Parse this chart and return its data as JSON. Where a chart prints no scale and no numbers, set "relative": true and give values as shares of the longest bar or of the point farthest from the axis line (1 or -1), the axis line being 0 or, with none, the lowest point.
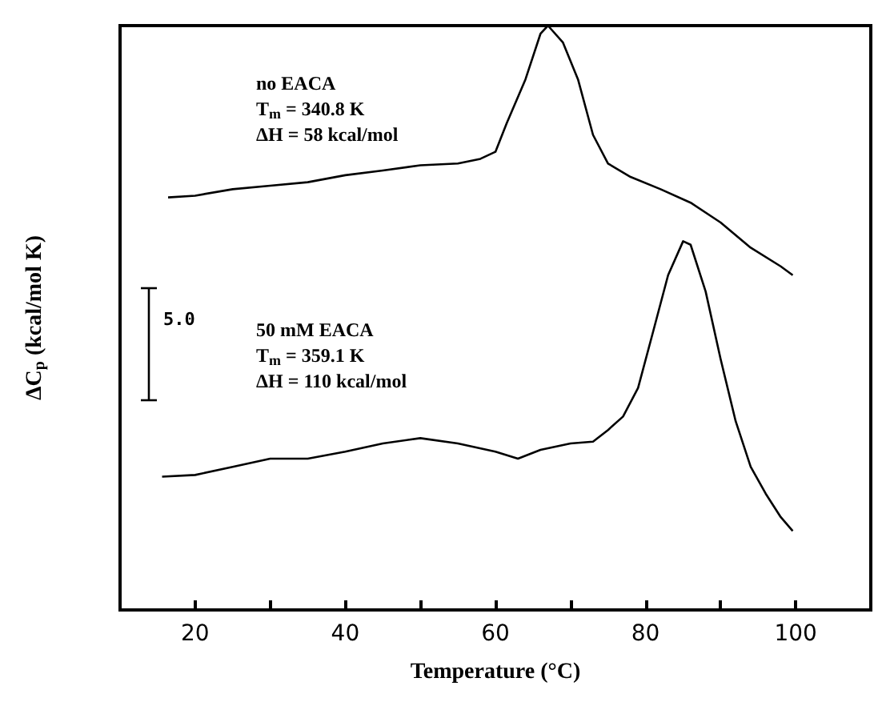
{
  "chart_data": {
    "type": "line",
    "relative": true,
    "xlabel": "Temperature (°C)",
    "ylabel": "ΔC$_{p}$ (kcal/mol K)",
    "xlim": [
      10,
      110
    ],
    "xticks": [
      20,
      {
        "value": 30,
        "label": null
      },
      40,
      {
        "value": 50,
        "label": null
      },
      60,
      {
        "value": 70,
        "label": null
      },
      80,
      {
        "value": 90,
        "label": null
      },
      100
    ],
    "series": [
      {
        "color": "#000000",
        "x": [
          16.4,
          20,
          25,
          30,
          35,
          40,
          45,
          50,
          55,
          58,
          60,
          61.5,
          64,
          66,
          67,
          69,
          71,
          73,
          75,
          78,
          82,
          86,
          90,
          94,
          98,
          99.6
        ],
        "values": [
          0.706,
          0.709,
          0.72,
          0.726,
          0.732,
          0.744,
          0.752,
          0.761,
          0.764,
          0.772,
          0.784,
          0.833,
          0.908,
          0.986,
          1.0,
          0.971,
          0.908,
          0.813,
          0.764,
          0.741,
          0.72,
          0.697,
          0.663,
          0.62,
          0.588,
          0.573
        ]
      },
      {
        "color": "#000000",
        "x": [
          15.6,
          20,
          25,
          30,
          35,
          40,
          45,
          50,
          55,
          60,
          63,
          66,
          70,
          73,
          75,
          77,
          79,
          81,
          83,
          85,
          86,
          88,
          90,
          92,
          94,
          96,
          98,
          99.6
        ],
        "values": [
          0.228,
          0.231,
          0.245,
          0.259,
          0.259,
          0.271,
          0.285,
          0.294,
          0.285,
          0.271,
          0.259,
          0.274,
          0.285,
          0.288,
          0.308,
          0.331,
          0.38,
          0.476,
          0.573,
          0.631,
          0.625,
          0.545,
          0.429,
          0.323,
          0.245,
          0.199,
          0.159,
          0.135
        ]
      }
    ],
    "annotations": [
      "no EACA\nT$_{m}$ = 340.8 K\nΔH = 58 kcal/mol",
      "50 mM EACA\nT$_{m}$ = 359.1 K\nΔH = 110 kcal/mol",
      "5.0"
    ],
    "grid": false,
    "marker": "none",
    "line_style": "solid"
  }
}
